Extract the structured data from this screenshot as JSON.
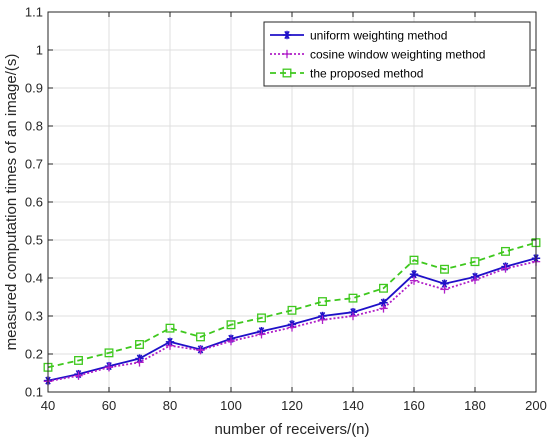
{
  "chart_data": {
    "type": "line",
    "title": "",
    "xlabel": "number of receivers/(n)",
    "ylabel": "measured computation times of an image/(s)",
    "xlim": [
      40,
      200
    ],
    "ylim": [
      0.1,
      1.1
    ],
    "xticks": [
      40,
      60,
      80,
      100,
      120,
      140,
      160,
      180,
      200
    ],
    "yticks": [
      0.1,
      0.2,
      0.3,
      0.4,
      0.5,
      0.6,
      0.7,
      0.8,
      0.9,
      1,
      1.1
    ],
    "grid": true,
    "legend_position": "top-right",
    "x": [
      40,
      50,
      60,
      70,
      80,
      90,
      100,
      110,
      120,
      130,
      140,
      150,
      160,
      170,
      180,
      190,
      200
    ],
    "series": [
      {
        "name": "uniform weighting method",
        "color": "#1f10c8",
        "line": "solid",
        "marker": "asterisk",
        "values": [
          0.13,
          0.147,
          0.168,
          0.188,
          0.232,
          0.212,
          0.24,
          0.26,
          0.278,
          0.3,
          0.31,
          0.335,
          0.41,
          0.385,
          0.403,
          0.43,
          0.452
        ]
      },
      {
        "name": "cosine window weighting method",
        "color": "#b020c8",
        "line": "dotted",
        "marker": "plus",
        "values": [
          0.128,
          0.143,
          0.165,
          0.178,
          0.222,
          0.21,
          0.234,
          0.252,
          0.27,
          0.29,
          0.3,
          0.32,
          0.393,
          0.37,
          0.395,
          0.425,
          0.443
        ]
      },
      {
        "name": "the proposed method",
        "color": "#3fc81e",
        "line": "dashed",
        "marker": "square",
        "values": [
          0.165,
          0.183,
          0.203,
          0.225,
          0.268,
          0.245,
          0.277,
          0.295,
          0.315,
          0.338,
          0.347,
          0.373,
          0.447,
          0.423,
          0.443,
          0.47,
          0.493
        ]
      }
    ]
  }
}
